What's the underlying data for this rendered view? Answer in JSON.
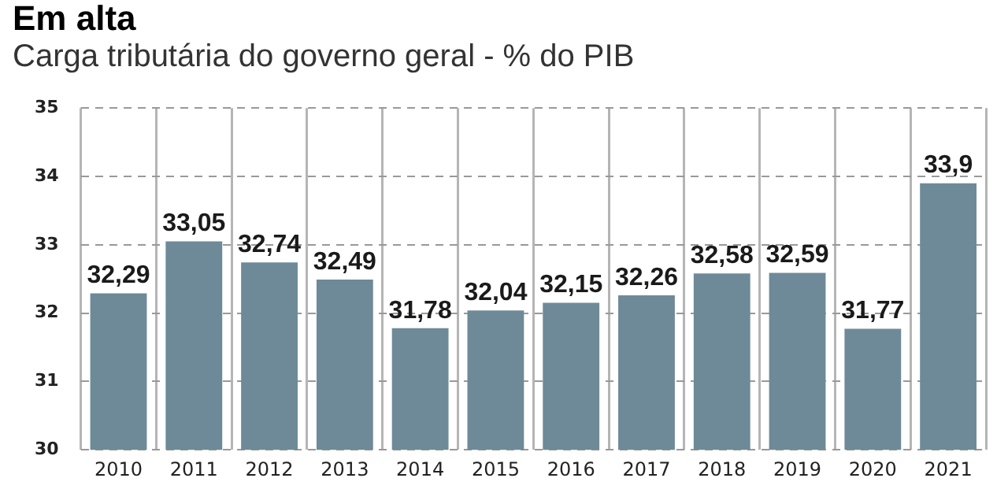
{
  "chart_data": {
    "type": "bar",
    "title": "Em alta",
    "subtitle": "Carga tributária do governo geral - % do PIB",
    "categories": [
      "2010",
      "2011",
      "2012",
      "2013",
      "2014",
      "2015",
      "2016",
      "2017",
      "2018",
      "2019",
      "2020",
      "2021"
    ],
    "values": [
      32.29,
      33.05,
      32.74,
      32.49,
      31.78,
      32.04,
      32.15,
      32.26,
      32.58,
      32.59,
      31.77,
      33.9
    ],
    "value_labels": [
      "32,29",
      "33,05",
      "32,74",
      "32,49",
      "31,78",
      "32,04",
      "32,15",
      "32,26",
      "32,58",
      "32,59",
      "31,77",
      "33,9"
    ],
    "color": "#6e8a98",
    "ylim": [
      30,
      35
    ],
    "yticks": [
      30,
      31,
      32,
      33,
      34,
      35
    ],
    "grid": true
  }
}
